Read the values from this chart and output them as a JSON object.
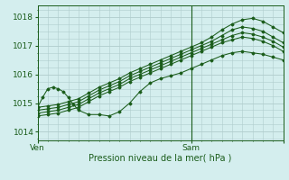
{
  "xlabel": "Pression niveau de la mer( hPa )",
  "bg_color": "#d4eeee",
  "grid_color": "#b0cccc",
  "line_color": "#1a5c1a",
  "ylim": [
    1013.7,
    1018.4
  ],
  "xlim": [
    0,
    48
  ],
  "xtick_positions": [
    0,
    30,
    48
  ],
  "xtick_labels": [
    "Ven",
    "Sam",
    ""
  ],
  "ytick_positions": [
    1014,
    1015,
    1016,
    1017,
    1018
  ],
  "ytick_labels": [
    "1014",
    "1015",
    "1016",
    "1017",
    "1018"
  ],
  "vline_x": 30,
  "series": [
    {
      "x": [
        0,
        2,
        4,
        6,
        8,
        10,
        12,
        14,
        16,
        18,
        20,
        22,
        24,
        26,
        28,
        30,
        32,
        34,
        36,
        38,
        40,
        42,
        44,
        46,
        48
      ],
      "y": [
        1014.85,
        1014.9,
        1014.95,
        1015.05,
        1015.15,
        1015.35,
        1015.55,
        1015.7,
        1015.85,
        1016.05,
        1016.2,
        1016.35,
        1016.5,
        1016.65,
        1016.8,
        1016.95,
        1017.1,
        1017.3,
        1017.55,
        1017.75,
        1017.9,
        1017.95,
        1017.85,
        1017.65,
        1017.45
      ]
    },
    {
      "x": [
        0,
        2,
        4,
        6,
        8,
        10,
        12,
        14,
        16,
        18,
        20,
        22,
        24,
        26,
        28,
        30,
        32,
        34,
        36,
        38,
        40,
        42,
        44,
        46,
        48
      ],
      "y": [
        1014.75,
        1014.8,
        1014.85,
        1014.95,
        1015.05,
        1015.25,
        1015.45,
        1015.6,
        1015.75,
        1015.95,
        1016.1,
        1016.25,
        1016.4,
        1016.55,
        1016.7,
        1016.85,
        1017.0,
        1017.15,
        1017.35,
        1017.55,
        1017.65,
        1017.6,
        1017.5,
        1017.3,
        1017.1
      ]
    },
    {
      "x": [
        0,
        2,
        4,
        6,
        8,
        10,
        12,
        14,
        16,
        18,
        20,
        22,
        24,
        26,
        28,
        30,
        32,
        34,
        36,
        38,
        40,
        42,
        44,
        46,
        48
      ],
      "y": [
        1014.65,
        1014.7,
        1014.75,
        1014.85,
        1014.95,
        1015.15,
        1015.35,
        1015.5,
        1015.65,
        1015.85,
        1016.0,
        1016.15,
        1016.3,
        1016.45,
        1016.6,
        1016.75,
        1016.9,
        1017.05,
        1017.2,
        1017.35,
        1017.45,
        1017.4,
        1017.3,
        1017.15,
        1016.95
      ]
    },
    {
      "x": [
        0,
        2,
        4,
        6,
        8,
        10,
        12,
        14,
        16,
        18,
        20,
        22,
        24,
        26,
        28,
        30,
        32,
        34,
        36,
        38,
        40,
        42,
        44,
        46,
        48
      ],
      "y": [
        1014.55,
        1014.6,
        1014.65,
        1014.75,
        1014.85,
        1015.05,
        1015.25,
        1015.4,
        1015.55,
        1015.75,
        1015.9,
        1016.05,
        1016.2,
        1016.35,
        1016.5,
        1016.65,
        1016.8,
        1016.95,
        1017.1,
        1017.2,
        1017.3,
        1017.25,
        1017.15,
        1017.0,
        1016.8
      ]
    },
    {
      "x": [
        0,
        1,
        2,
        3,
        4,
        5,
        6,
        7,
        8,
        10,
        12,
        14,
        16,
        18,
        20,
        22,
        24,
        26,
        28,
        30,
        32,
        34,
        36,
        38,
        40,
        42,
        44,
        46,
        48
      ],
      "y": [
        1014.85,
        1015.2,
        1015.5,
        1015.55,
        1015.5,
        1015.4,
        1015.2,
        1014.95,
        1014.75,
        1014.6,
        1014.6,
        1014.55,
        1014.7,
        1015.0,
        1015.4,
        1015.7,
        1015.85,
        1015.95,
        1016.05,
        1016.2,
        1016.35,
        1016.5,
        1016.65,
        1016.75,
        1016.8,
        1016.75,
        1016.7,
        1016.6,
        1016.5
      ]
    }
  ]
}
